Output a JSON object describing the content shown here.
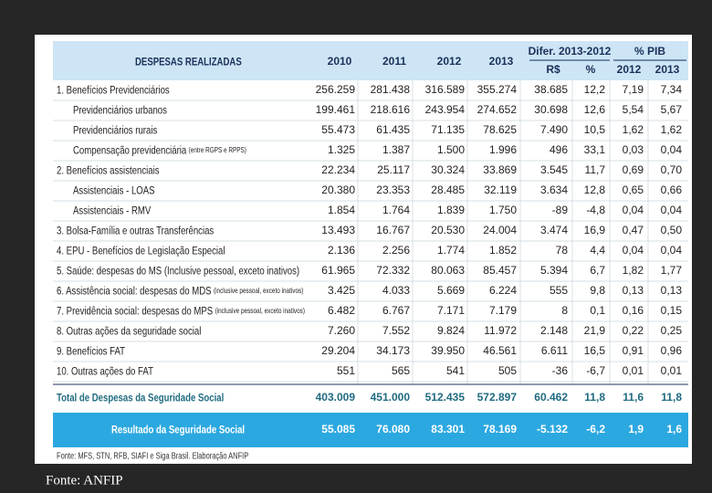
{
  "header": {
    "title": "DESPESAS REALIZADAS",
    "years": [
      "2010",
      "2011",
      "2012",
      "2013"
    ],
    "groups": [
      {
        "title": "Difer. 2013-2012",
        "subs": [
          "R$",
          "%"
        ]
      },
      {
        "title": "% PIB",
        "subs": [
          "2012",
          "2013"
        ]
      }
    ]
  },
  "table": {
    "rows": [
      {
        "label": "1. Benefícios Previdenciários",
        "values": [
          "256.259",
          "281.438",
          "316.589",
          "355.274",
          "38.685",
          "12,2",
          "7,19",
          "7,34"
        ],
        "items": [
          {
            "label": "Previdenciários urbanos",
            "values": [
              "199.461",
              "218.616",
              "243.954",
              "274.652",
              "30.698",
              "12,6",
              "5,54",
              "5,67"
            ]
          },
          {
            "label": "Previdenciários rurais",
            "values": [
              "55.473",
              "61.435",
              "71.135",
              "78.625",
              "7.490",
              "10,5",
              "1,62",
              "1,62"
            ]
          },
          {
            "label": "Compensação previdenciária",
            "note": "(entre RGPS e RPPS)",
            "values": [
              "1.325",
              "1.387",
              "1.500",
              "1.996",
              "496",
              "33,1",
              "0,03",
              "0,04"
            ]
          }
        ]
      },
      {
        "label": "2. Benefícios assistenciais",
        "values": [
          "22.234",
          "25.117",
          "30.324",
          "33.869",
          "3.545",
          "11,7",
          "0,69",
          "0,70"
        ],
        "items": [
          {
            "label": "Assistenciais - LOAS",
            "values": [
              "20.380",
              "23.353",
              "28.485",
              "32.119",
              "3.634",
              "12,8",
              "0,65",
              "0,66"
            ]
          },
          {
            "label": "Assistenciais - RMV",
            "values": [
              "1.854",
              "1.764",
              "1.839",
              "1.750",
              "-89",
              "-4,8",
              "0,04",
              "0,04"
            ]
          }
        ]
      },
      {
        "label": "3. Bolsa-Família e outras Transferências",
        "values": [
          "13.493",
          "16.767",
          "20.530",
          "24.004",
          "3.474",
          "16,9",
          "0,47",
          "0,50"
        ]
      },
      {
        "label": "4. EPU - Benefícios de Legislação Especial",
        "values": [
          "2.136",
          "2.256",
          "1.774",
          "1.852",
          "78",
          "4,4",
          "0,04",
          "0,04"
        ]
      },
      {
        "label": "5. Saúde: despesas do MS (Inclusive pessoal, exceto inativos)",
        "values": [
          "61.965",
          "72.332",
          "80.063",
          "85.457",
          "5.394",
          "6,7",
          "1,82",
          "1,77"
        ]
      },
      {
        "label": "6. Assistência social: despesas do MDS",
        "note": "(inclusive pessoal, exceto inativos)",
        "values": [
          "3.425",
          "4.033",
          "5.669",
          "6.224",
          "555",
          "9,8",
          "0,13",
          "0,13"
        ]
      },
      {
        "label": "7. Previdência social: despesas do MPS",
        "note": "(inclusive pessoal, exceto inativos)",
        "values": [
          "6.482",
          "6.767",
          "7.171",
          "7.179",
          "8",
          "0,1",
          "0,16",
          "0,15"
        ]
      },
      {
        "label": "8. Outras ações da seguridade social",
        "values": [
          "7.260",
          "7.552",
          "9.824",
          "11.972",
          "2.148",
          "21,9",
          "0,22",
          "0,25"
        ]
      },
      {
        "label": "9. Benefícios FAT",
        "values": [
          "29.204",
          "34.173",
          "39.950",
          "46.561",
          "6.611",
          "16,5",
          "0,91",
          "0,96"
        ]
      },
      {
        "label": "10. Outras ações do FAT",
        "values": [
          "551",
          "565",
          "541",
          "505",
          "-36",
          "-6,7",
          "0,01",
          "0,01"
        ]
      }
    ],
    "total": {
      "label": "Total de Despesas da Seguridade Social",
      "values": [
        "403.009",
        "451.000",
        "512.435",
        "572.897",
        "60.462",
        "11,8",
        "11,6",
        "11,8"
      ]
    },
    "result": {
      "label": "Resultado da Seguridade Social",
      "values": [
        "55.085",
        "76.080",
        "83.301",
        "78.169",
        "-5.132",
        "-6,2",
        "1,9",
        "1,6"
      ]
    }
  },
  "source": "Fonte: MFS, STN, RFB, SIAFI e Siga Brasil. Elaboração ANFIP",
  "caption": "Fonte: ANFIP"
}
